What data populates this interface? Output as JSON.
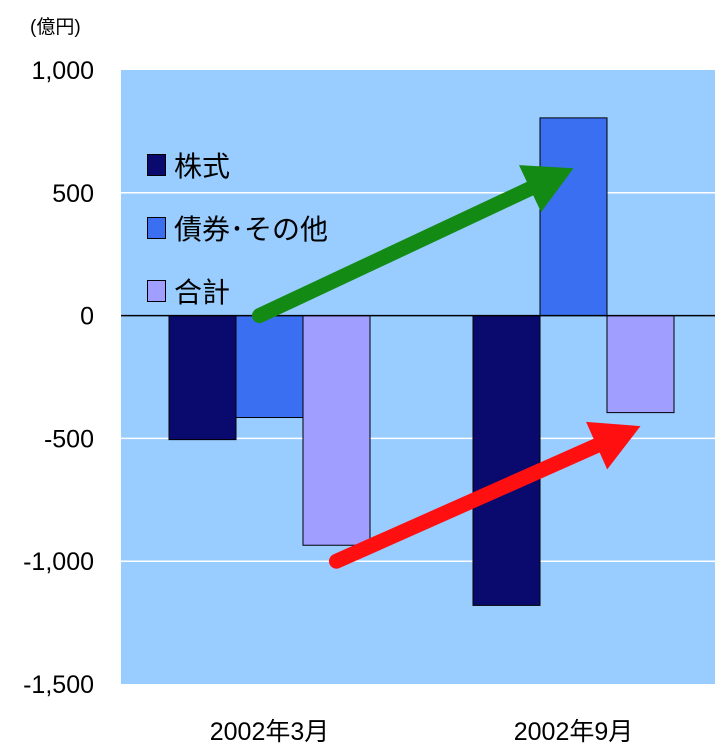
{
  "chart_data": {
    "type": "bar",
    "unit_label": "(億円)",
    "categories": [
      "2002年3月",
      "2002年9月"
    ],
    "series": [
      {
        "name": "株式",
        "color": "#0a0a6e",
        "values": [
          -505,
          -1180
        ]
      },
      {
        "name": "債券･その他",
        "color": "#3a6ff2",
        "values": [
          -415,
          805
        ]
      },
      {
        "name": "合計",
        "color": "#a09eff",
        "values": [
          -935,
          -395
        ]
      }
    ],
    "ylim": [
      -1500,
      1000
    ],
    "y_ticks": [
      1000,
      500,
      0,
      -500,
      -1000,
      -1500
    ],
    "y_tick_labels": [
      "1,000",
      "500",
      "0",
      "-500",
      "-1,000",
      "-1,500"
    ],
    "grid": true,
    "plot_background": "#99ccff",
    "annotations": [
      {
        "type": "arrow",
        "color": "#138a13",
        "from": {
          "category": "2002年3月",
          "series": "債券･その他",
          "value": 0
        },
        "to": {
          "category": "2002年9月",
          "series": "債券･その他",
          "value": 600
        }
      },
      {
        "type": "arrow",
        "color": "#ff0f0f",
        "from": {
          "category": "2002年3月",
          "series": "合計",
          "value": -1000
        },
        "to": {
          "category": "2002年9月",
          "series": "合計",
          "value": -450
        }
      }
    ],
    "legend_position": "top-left"
  }
}
